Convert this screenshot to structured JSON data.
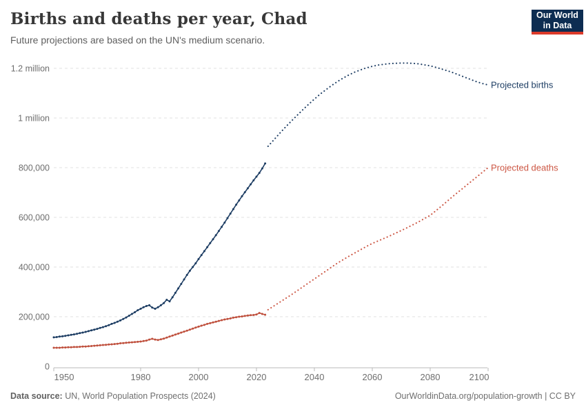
{
  "header": {
    "title": "Births and deaths per year, Chad",
    "subtitle": "Future projections are based on the UN's medium scenario."
  },
  "logo": {
    "line1": "Our World",
    "line2": "in Data",
    "bg_color": "#0d2d52",
    "bar_color": "#dc3a2a"
  },
  "footer": {
    "source_label": "Data source:",
    "source_text": " UN, World Population Prospects (2024)",
    "credit": "OurWorldinData.org/population-growth | CC BY"
  },
  "colors": {
    "births": "#1d3d63",
    "deaths": "#bf4f3c",
    "projected_deaths": "#cc5643",
    "grid": "#e0e0e0",
    "axis": "#b8b8b8",
    "tick_text": "#6e6e6e"
  },
  "chart_data": {
    "type": "line",
    "title": "Births and deaths per year, Chad",
    "subtitle": "Future projections are based on the UN's medium scenario.",
    "xlabel": "",
    "ylabel": "",
    "x_range": [
      1950,
      2100
    ],
    "y_range": [
      0,
      1250000
    ],
    "grid": "horizontal-dashed",
    "legend_position": "line-end-labels",
    "yticks": [
      {
        "value": 0,
        "label": "0"
      },
      {
        "value": 200000,
        "label": "200,000"
      },
      {
        "value": 400000,
        "label": "400,000"
      },
      {
        "value": 600000,
        "label": "600,000"
      },
      {
        "value": 800000,
        "label": "800,000"
      },
      {
        "value": 1000000,
        "label": "1 million"
      },
      {
        "value": 1200000,
        "label": "1.2 million"
      }
    ],
    "xticks": [
      {
        "value": 1950,
        "label": "1950"
      },
      {
        "value": 1980,
        "label": "1980"
      },
      {
        "value": 2000,
        "label": "2000"
      },
      {
        "value": 2020,
        "label": "2020"
      },
      {
        "value": 2040,
        "label": "2040"
      },
      {
        "value": 2060,
        "label": "2060"
      },
      {
        "value": 2080,
        "label": "2080"
      },
      {
        "value": 2100,
        "label": "2100"
      }
    ],
    "series": [
      {
        "id": "births",
        "name": "Births",
        "color": "#1d3d63",
        "style": "solid",
        "points": [
          [
            1950,
            117000
          ],
          [
            1951,
            118000
          ],
          [
            1952,
            120000
          ],
          [
            1953,
            121000
          ],
          [
            1954,
            123000
          ],
          [
            1955,
            125000
          ],
          [
            1956,
            127000
          ],
          [
            1957,
            129000
          ],
          [
            1958,
            131000
          ],
          [
            1959,
            134000
          ],
          [
            1960,
            136000
          ],
          [
            1961,
            139000
          ],
          [
            1962,
            142000
          ],
          [
            1963,
            145000
          ],
          [
            1964,
            148000
          ],
          [
            1965,
            151000
          ],
          [
            1966,
            155000
          ],
          [
            1967,
            158000
          ],
          [
            1968,
            162000
          ],
          [
            1969,
            166000
          ],
          [
            1970,
            171000
          ],
          [
            1971,
            175000
          ],
          [
            1972,
            180000
          ],
          [
            1973,
            185000
          ],
          [
            1974,
            191000
          ],
          [
            1975,
            197000
          ],
          [
            1976,
            204000
          ],
          [
            1977,
            211000
          ],
          [
            1978,
            218000
          ],
          [
            1979,
            226000
          ],
          [
            1980,
            232000
          ],
          [
            1981,
            238000
          ],
          [
            1982,
            243000
          ],
          [
            1983,
            246000
          ],
          [
            1984,
            237000
          ],
          [
            1985,
            232000
          ],
          [
            1986,
            238000
          ],
          [
            1987,
            246000
          ],
          [
            1988,
            255000
          ],
          [
            1989,
            268000
          ],
          [
            1990,
            262000
          ],
          [
            1991,
            278000
          ],
          [
            1992,
            296000
          ],
          [
            1993,
            314000
          ],
          [
            1994,
            332000
          ],
          [
            1995,
            350000
          ],
          [
            1996,
            368000
          ],
          [
            1997,
            385000
          ],
          [
            1998,
            400000
          ],
          [
            1999,
            415000
          ],
          [
            2000,
            432000
          ],
          [
            2001,
            448000
          ],
          [
            2002,
            464000
          ],
          [
            2003,
            480000
          ],
          [
            2004,
            496000
          ],
          [
            2005,
            512000
          ],
          [
            2006,
            528000
          ],
          [
            2007,
            545000
          ],
          [
            2008,
            562000
          ],
          [
            2009,
            579000
          ],
          [
            2010,
            597000
          ],
          [
            2011,
            615000
          ],
          [
            2012,
            633000
          ],
          [
            2013,
            651000
          ],
          [
            2014,
            668000
          ],
          [
            2015,
            685000
          ],
          [
            2016,
            701000
          ],
          [
            2017,
            717000
          ],
          [
            2018,
            733000
          ],
          [
            2019,
            749000
          ],
          [
            2020,
            764000
          ],
          [
            2021,
            779000
          ],
          [
            2022,
            797000
          ],
          [
            2023,
            817000
          ]
        ]
      },
      {
        "id": "projected-births",
        "name": "Projected births",
        "label": "Projected births",
        "color": "#1d3d63",
        "style": "dotted",
        "points": [
          [
            2024,
            886000
          ],
          [
            2026,
            912000
          ],
          [
            2028,
            938000
          ],
          [
            2030,
            963000
          ],
          [
            2032,
            987000
          ],
          [
            2034,
            1010000
          ],
          [
            2036,
            1033000
          ],
          [
            2038,
            1055000
          ],
          [
            2040,
            1076000
          ],
          [
            2042,
            1096000
          ],
          [
            2044,
            1114000
          ],
          [
            2046,
            1131000
          ],
          [
            2048,
            1147000
          ],
          [
            2050,
            1161000
          ],
          [
            2052,
            1174000
          ],
          [
            2054,
            1185000
          ],
          [
            2056,
            1194000
          ],
          [
            2058,
            1202000
          ],
          [
            2060,
            1208000
          ],
          [
            2062,
            1213000
          ],
          [
            2064,
            1216000
          ],
          [
            2066,
            1219000
          ],
          [
            2068,
            1220000
          ],
          [
            2070,
            1221000
          ],
          [
            2072,
            1221000
          ],
          [
            2074,
            1220000
          ],
          [
            2076,
            1218000
          ],
          [
            2078,
            1214000
          ],
          [
            2080,
            1210000
          ],
          [
            2082,
            1204000
          ],
          [
            2084,
            1197000
          ],
          [
            2086,
            1190000
          ],
          [
            2088,
            1182000
          ],
          [
            2090,
            1173000
          ],
          [
            2092,
            1164000
          ],
          [
            2094,
            1155000
          ],
          [
            2096,
            1146000
          ],
          [
            2098,
            1139000
          ],
          [
            2100,
            1133000
          ]
        ]
      },
      {
        "id": "deaths",
        "name": "Deaths",
        "color": "#bf4f3c",
        "style": "solid",
        "points": [
          [
            1950,
            75000
          ],
          [
            1951,
            75000
          ],
          [
            1952,
            75000
          ],
          [
            1953,
            76000
          ],
          [
            1954,
            76000
          ],
          [
            1955,
            77000
          ],
          [
            1956,
            77000
          ],
          [
            1957,
            78000
          ],
          [
            1958,
            78000
          ],
          [
            1959,
            79000
          ],
          [
            1960,
            80000
          ],
          [
            1961,
            80000
          ],
          [
            1962,
            81000
          ],
          [
            1963,
            82000
          ],
          [
            1964,
            83000
          ],
          [
            1965,
            84000
          ],
          [
            1966,
            85000
          ],
          [
            1967,
            86000
          ],
          [
            1968,
            87000
          ],
          [
            1969,
            88000
          ],
          [
            1970,
            89000
          ],
          [
            1971,
            90000
          ],
          [
            1972,
            91000
          ],
          [
            1973,
            93000
          ],
          [
            1974,
            94000
          ],
          [
            1975,
            95000
          ],
          [
            1976,
            96000
          ],
          [
            1977,
            97000
          ],
          [
            1978,
            98000
          ],
          [
            1979,
            99000
          ],
          [
            1980,
            100000
          ],
          [
            1981,
            102000
          ],
          [
            1982,
            104000
          ],
          [
            1983,
            108000
          ],
          [
            1984,
            111000
          ],
          [
            1985,
            108000
          ],
          [
            1986,
            106000
          ],
          [
            1987,
            109000
          ],
          [
            1988,
            112000
          ],
          [
            1989,
            116000
          ],
          [
            1990,
            120000
          ],
          [
            1991,
            124000
          ],
          [
            1992,
            128000
          ],
          [
            1993,
            132000
          ],
          [
            1994,
            136000
          ],
          [
            1995,
            140000
          ],
          [
            1996,
            144000
          ],
          [
            1997,
            148000
          ],
          [
            1998,
            152000
          ],
          [
            1999,
            156000
          ],
          [
            2000,
            160000
          ],
          [
            2001,
            164000
          ],
          [
            2002,
            167000
          ],
          [
            2003,
            171000
          ],
          [
            2004,
            174000
          ],
          [
            2005,
            177000
          ],
          [
            2006,
            180000
          ],
          [
            2007,
            183000
          ],
          [
            2008,
            186000
          ],
          [
            2009,
            189000
          ],
          [
            2010,
            191000
          ],
          [
            2011,
            193000
          ],
          [
            2012,
            196000
          ],
          [
            2013,
            198000
          ],
          [
            2014,
            200000
          ],
          [
            2015,
            201000
          ],
          [
            2016,
            203000
          ],
          [
            2017,
            205000
          ],
          [
            2018,
            206000
          ],
          [
            2019,
            207000
          ],
          [
            2020,
            209000
          ],
          [
            2021,
            215000
          ],
          [
            2022,
            211000
          ],
          [
            2023,
            208000
          ]
        ]
      },
      {
        "id": "projected-deaths",
        "name": "Projected deaths",
        "label": "Projected deaths",
        "color": "#cc5643",
        "style": "dotted",
        "points": [
          [
            2024,
            228000
          ],
          [
            2026,
            243000
          ],
          [
            2028,
            258000
          ],
          [
            2030,
            273000
          ],
          [
            2032,
            288000
          ],
          [
            2034,
            304000
          ],
          [
            2036,
            320000
          ],
          [
            2038,
            336000
          ],
          [
            2040,
            352000
          ],
          [
            2042,
            368000
          ],
          [
            2044,
            384000
          ],
          [
            2046,
            400000
          ],
          [
            2048,
            416000
          ],
          [
            2050,
            430000
          ],
          [
            2052,
            444000
          ],
          [
            2054,
            457000
          ],
          [
            2056,
            470000
          ],
          [
            2058,
            483000
          ],
          [
            2060,
            495000
          ],
          [
            2062,
            505000
          ],
          [
            2064,
            515000
          ],
          [
            2066,
            525000
          ],
          [
            2068,
            536000
          ],
          [
            2070,
            547000
          ],
          [
            2072,
            558000
          ],
          [
            2074,
            570000
          ],
          [
            2076,
            582000
          ],
          [
            2078,
            595000
          ],
          [
            2080,
            608000
          ],
          [
            2082,
            627000
          ],
          [
            2084,
            646000
          ],
          [
            2086,
            666000
          ],
          [
            2088,
            686000
          ],
          [
            2090,
            705000
          ],
          [
            2092,
            724000
          ],
          [
            2094,
            743000
          ],
          [
            2096,
            762000
          ],
          [
            2098,
            781000
          ],
          [
            2100,
            800000
          ]
        ]
      }
    ]
  }
}
